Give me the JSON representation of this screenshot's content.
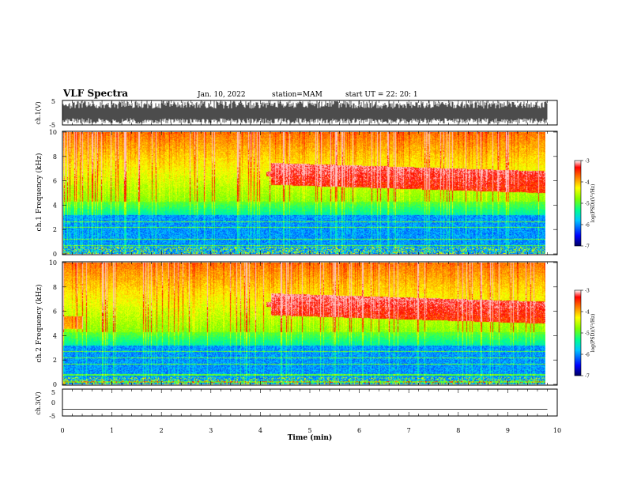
{
  "header": {
    "title": "VLF Spectra",
    "date": "Jan. 10, 2022",
    "station": "station=MAM",
    "start": "start UT =  22: 20: 1"
  },
  "panels": {
    "ch1_wave": {
      "ylabel": "ch.1(V)",
      "ticks": [
        "5",
        "-5"
      ]
    },
    "spec1": {
      "ylabel": "ch.1 Frequency (kHz)",
      "ticks": [
        "10",
        "8",
        "6",
        "4",
        "2",
        "0"
      ]
    },
    "spec2": {
      "ylabel": "ch.2 Frequency (kHz)",
      "ticks": [
        "10",
        "8",
        "6",
        "4",
        "2",
        "0"
      ]
    },
    "ch3_wave": {
      "ylabel": "ch.3(V)",
      "ticks": [
        "5",
        "0",
        "-5"
      ]
    }
  },
  "colorbar": {
    "label": "log(PSD)(V²/Hz)",
    "ticks": [
      "-3",
      "-4",
      "-5",
      "-6",
      "-7"
    ],
    "colors": [
      "#000080",
      "#0000ff",
      "#00c0ff",
      "#00ffff",
      "#00ff80",
      "#80ff00",
      "#ffff00",
      "#ff8000",
      "#ff0000",
      "#ffffff"
    ]
  },
  "xaxis": {
    "label": "Time (min)",
    "ticks": [
      "0",
      "1",
      "2",
      "3",
      "4",
      "5",
      "6",
      "7",
      "8",
      "9",
      "10"
    ]
  },
  "chart_data": {
    "type": "heatmap",
    "title": "VLF Spectra",
    "xlabel": "Time (min)",
    "ylabel": "Frequency (kHz)",
    "xlim": [
      0,
      10
    ],
    "ylim": [
      0,
      10
    ],
    "data_end_min": 9.8,
    "colorbar_range": [
      -7,
      -3
    ],
    "channels": [
      "ch.1",
      "ch.2"
    ],
    "waveform_ylim": [
      -5,
      5
    ],
    "ch3_trace_level": -2.5
  }
}
